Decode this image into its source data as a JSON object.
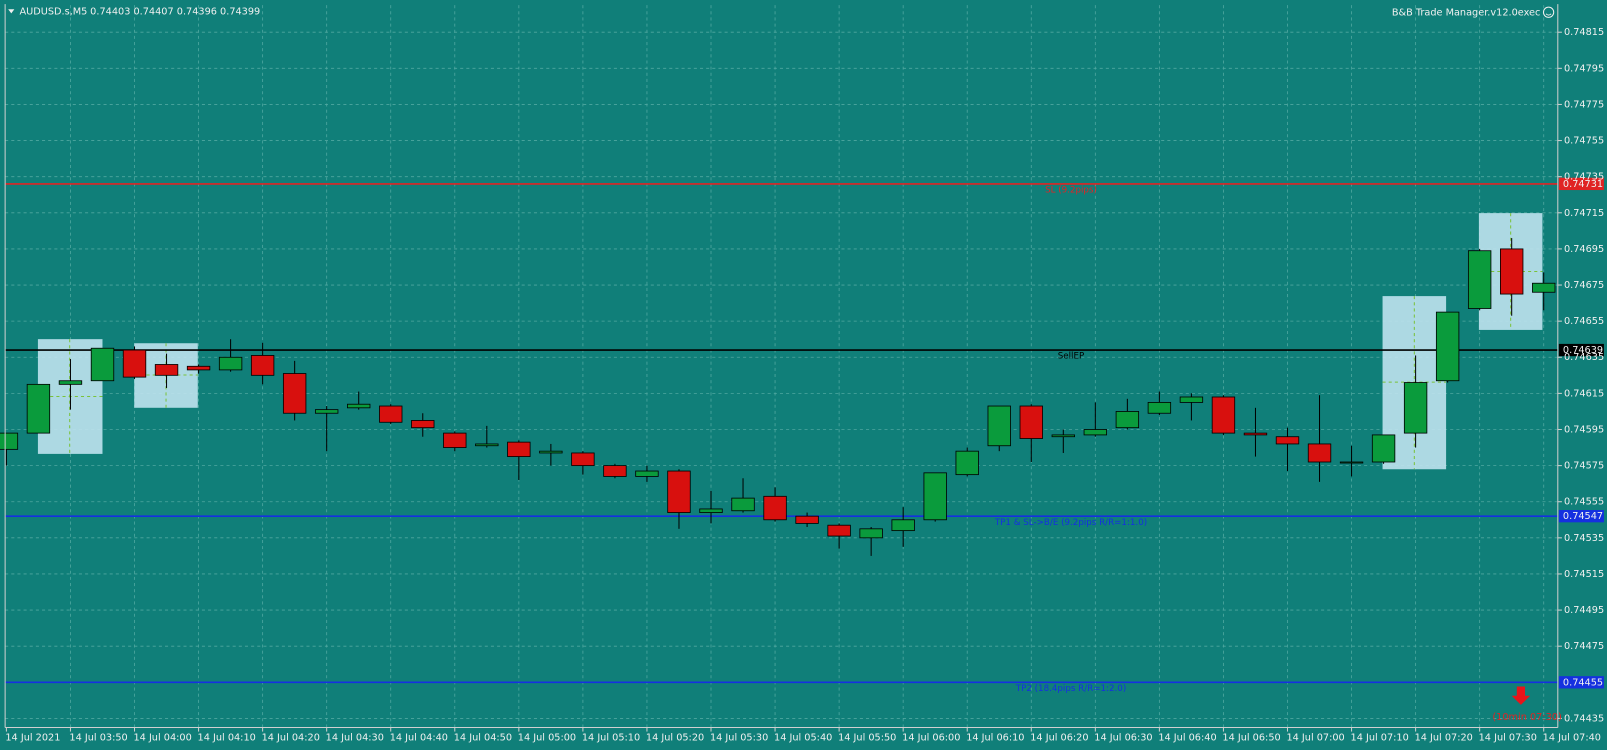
{
  "chart_data": {
    "type": "candlestick",
    "title": "AUDUSD.s,M5",
    "subtitle": "0.74403 0.74407 0.74396 0.74399",
    "indicator": "B&B Trade Manager.v12.0exec",
    "categories": [
      "14 Jul 2021",
      null,
      "14 Jul 03:50",
      null,
      "14 Jul 04:00",
      null,
      "14 Jul 04:10",
      null,
      "14 Jul 04:20",
      null,
      "14 Jul 04:30",
      null,
      "14 Jul 04:40",
      null,
      "14 Jul 04:50",
      null,
      "14 Jul 05:00",
      null,
      "14 Jul 05:10",
      null,
      "14 Jul 05:20",
      null,
      "14 Jul 05:30",
      null,
      "14 Jul 05:40",
      null,
      "14 Jul 05:50",
      null,
      "14 Jul 06:00",
      null,
      "14 Jul 06:10",
      null,
      "14 Jul 06:20",
      null,
      "14 Jul 06:30",
      null,
      "14 Jul 06:40",
      null,
      "14 Jul 06:50",
      null,
      "14 Jul 07:00",
      null,
      "14 Jul 07:10",
      null,
      "14 Jul 07:20",
      null,
      "14 Jul 07:30",
      null,
      "14 Jul 07:40"
    ],
    "open": [
      0.74584,
      0.74593,
      0.7462,
      0.74622,
      0.74639,
      0.74631,
      0.7463,
      0.74628,
      0.74636,
      0.74626,
      0.74604,
      0.74607,
      0.74608,
      0.746,
      0.74593,
      0.74586,
      0.74588,
      0.74582,
      0.74582,
      0.74575,
      0.74569,
      0.74572,
      0.74549,
      0.7455,
      0.74558,
      0.74547,
      0.74542,
      0.74535,
      0.74539,
      0.74545,
      0.7457,
      0.74586,
      0.74608,
      0.74591,
      0.74592,
      0.74596,
      0.74604,
      0.7461,
      0.74613,
      0.74593,
      0.74591,
      0.74587,
      0.74577,
      0.74577,
      0.74593,
      0.74622,
      0.74662,
      0.74695,
      0.74671
    ],
    "high": [
      0.74593,
      0.7462,
      0.74634,
      0.7464,
      0.74641,
      0.74637,
      0.74631,
      0.74645,
      0.74643,
      0.74633,
      0.74608,
      0.74616,
      0.74609,
      0.74604,
      0.74594,
      0.74597,
      0.74589,
      0.74587,
      0.74583,
      0.74576,
      0.74575,
      0.74573,
      0.74561,
      0.74568,
      0.74563,
      0.74549,
      0.74543,
      0.74541,
      0.74552,
      0.74571,
      0.74585,
      0.74608,
      0.74609,
      0.74595,
      0.7461,
      0.74612,
      0.74616,
      0.74615,
      0.74614,
      0.74607,
      0.74596,
      0.74614,
      0.74586,
      0.74592,
      0.74636,
      0.7466,
      0.74695,
      0.74701,
      0.74682
    ],
    "low": [
      0.74575,
      0.74593,
      0.74606,
      0.74622,
      0.74623,
      0.74618,
      0.74626,
      0.74627,
      0.7462,
      0.746,
      0.74583,
      0.74606,
      0.74598,
      0.74591,
      0.74583,
      0.74585,
      0.74567,
      0.74575,
      0.7457,
      0.74568,
      0.74566,
      0.7454,
      0.74543,
      0.74549,
      0.74544,
      0.74541,
      0.74529,
      0.74525,
      0.7453,
      0.74544,
      0.74569,
      0.74583,
      0.74577,
      0.74582,
      0.74591,
      0.74595,
      0.74603,
      0.746,
      0.74592,
      0.7458,
      0.74572,
      0.74566,
      0.74569,
      0.74576,
      0.74585,
      0.74621,
      0.74661,
      0.74658,
      0.74661
    ],
    "close": [
      0.74593,
      0.7462,
      0.74622,
      0.7464,
      0.74624,
      0.74625,
      0.74628,
      0.74635,
      0.74625,
      0.74604,
      0.74606,
      0.74609,
      0.74599,
      0.74596,
      0.74585,
      0.74587,
      0.7458,
      0.74583,
      0.74575,
      0.74569,
      0.74572,
      0.74549,
      0.74551,
      0.74557,
      0.74545,
      0.74543,
      0.74536,
      0.7454,
      0.74545,
      0.74571,
      0.74583,
      0.74608,
      0.7459,
      0.74592,
      0.74595,
      0.74605,
      0.7461,
      0.74613,
      0.74593,
      0.74592,
      0.74587,
      0.74577,
      0.74577,
      0.74592,
      0.74621,
      0.7466,
      0.74694,
      0.7467,
      0.74676
    ],
    "up_color": "#0a9b3c",
    "down_color": "#d8100e",
    "ylim": [
      0.7443,
      0.7483
    ],
    "yticks": [
      0.74435,
      0.74475,
      0.74495,
      0.74515,
      0.74535,
      0.74555,
      0.74575,
      0.74595,
      0.74615,
      0.74635,
      0.74655,
      0.74675,
      0.74695,
      0.74715,
      0.74735,
      0.74755,
      0.74775,
      0.74795,
      0.74815
    ],
    "grid": true,
    "levels": [
      {
        "name": "SL (9.2pips)",
        "value": 0.74731,
        "color": "#e02424"
      },
      {
        "name": "SellEP",
        "value": 0.74639,
        "color": "#000000"
      },
      {
        "name": "TP1 & SL->B/E (9.2pips R/R=1:1.0)",
        "value": 0.74547,
        "color": "#1530e0"
      },
      {
        "name": "TP2 (18.4pips R/R=1:2.0)",
        "value": 0.74455,
        "color": "#1530e0"
      }
    ],
    "annotation": "(10min 07:30)"
  }
}
